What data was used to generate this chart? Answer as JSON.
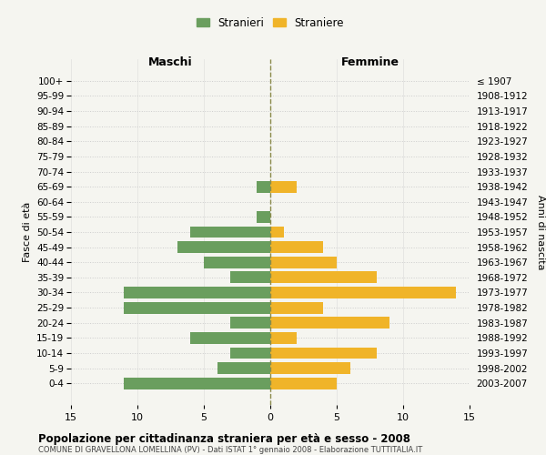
{
  "age_groups": [
    "100+",
    "95-99",
    "90-94",
    "85-89",
    "80-84",
    "75-79",
    "70-74",
    "65-69",
    "60-64",
    "55-59",
    "50-54",
    "45-49",
    "40-44",
    "35-39",
    "30-34",
    "25-29",
    "20-24",
    "15-19",
    "10-14",
    "5-9",
    "0-4"
  ],
  "birth_years": [
    "≤ 1907",
    "1908-1912",
    "1913-1917",
    "1918-1922",
    "1923-1927",
    "1928-1932",
    "1933-1937",
    "1938-1942",
    "1943-1947",
    "1948-1952",
    "1953-1957",
    "1958-1962",
    "1963-1967",
    "1968-1972",
    "1973-1977",
    "1978-1982",
    "1983-1987",
    "1988-1992",
    "1993-1997",
    "1998-2002",
    "2003-2007"
  ],
  "maschi": [
    0,
    0,
    0,
    0,
    0,
    0,
    0,
    1,
    0,
    1,
    6,
    7,
    5,
    3,
    11,
    11,
    3,
    6,
    3,
    4,
    11
  ],
  "femmine": [
    0,
    0,
    0,
    0,
    0,
    0,
    0,
    2,
    0,
    0,
    1,
    4,
    5,
    8,
    14,
    4,
    9,
    2,
    8,
    6,
    5
  ],
  "maschi_color": "#6a9e5e",
  "femmine_color": "#f0b429",
  "background_color": "#f5f5f0",
  "grid_color": "#cccccc",
  "dashed_line_color": "#8a8a4a",
  "title": "Popolazione per cittadinanza straniera per età e sesso - 2008",
  "subtitle": "COMUNE DI GRAVELLONA LOMELLINA (PV) - Dati ISTAT 1° gennaio 2008 - Elaborazione TUTTITALIA.IT",
  "ylabel_left": "Fasce di età",
  "ylabel_right": "Anni di nascita",
  "xlabel_maschi": "Maschi",
  "xlabel_femmine": "Femmine",
  "legend_maschi": "Stranieri",
  "legend_femmine": "Straniere",
  "xlim": 15
}
